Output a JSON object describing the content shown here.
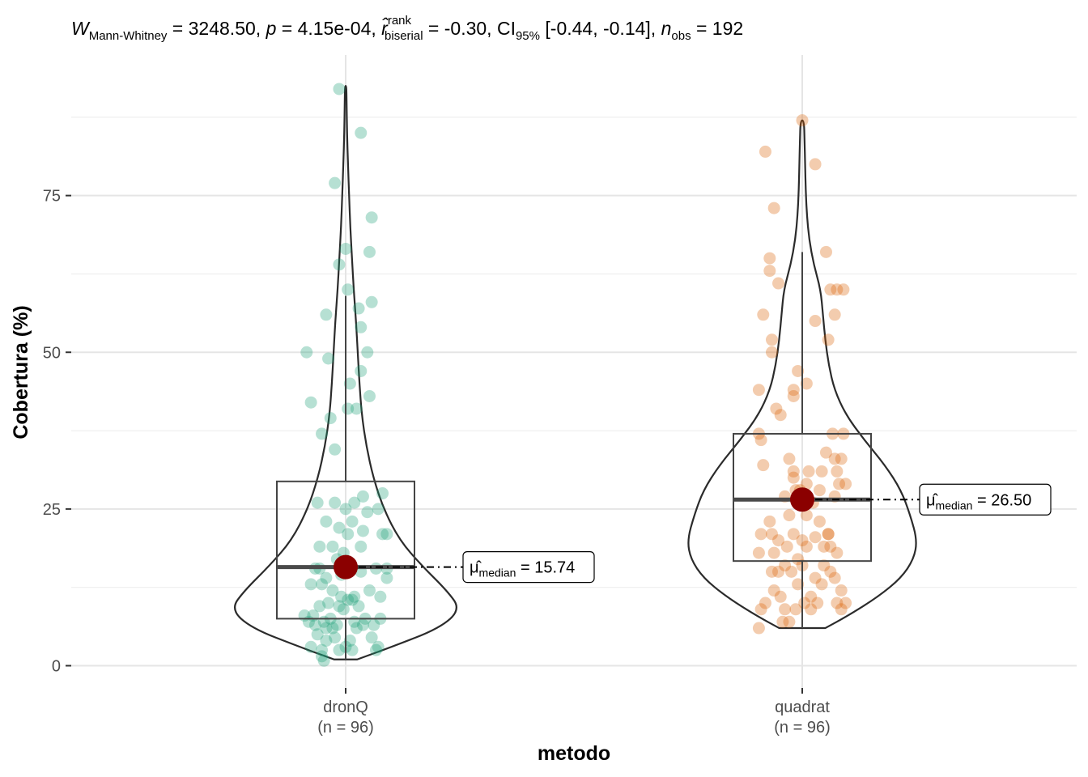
{
  "title": {
    "w_symbol": "W",
    "w_sub": "Mann-Whitney",
    "w_value": " = 3248.50, ",
    "p_symbol": "p",
    "p_value": " = 4.15e-04, ",
    "r_symbol": "r̂",
    "r_sup": "rank",
    "r_sub": "biserial",
    "r_value": " = -0.30, CI",
    "ci_sub": "95%",
    "ci_value": " [-0.44, -0.14], ",
    "n_symbol": "n",
    "n_sub": "obs",
    "n_value": " = 192"
  },
  "chart_data": {
    "type": "violin-box-scatter",
    "xlabel": "metodo",
    "ylabel": "Cobertura (%)",
    "ylim": [
      -3,
      98
    ],
    "yticks": [
      "0",
      "25",
      "50",
      "75"
    ],
    "ytick_values": [
      0,
      25,
      50,
      75
    ],
    "groups": [
      {
        "name": "dronQ",
        "label": "dronQ",
        "n_label": "(n = 96)",
        "color": "#1b9e77",
        "box": {
          "q1": 7.5,
          "median": 15.74,
          "q3": 29.4,
          "whisker_low": 1.0,
          "whisker_high": 59.0
        },
        "median_label_sym": "μ̂",
        "median_label_sub": "median",
        "median_label_val": " = 15.74",
        "median": 15.74,
        "violin_min": 1.0,
        "violin_max": 92.5,
        "violin": [
          [
            1,
            0.1
          ],
          [
            3,
            0.4
          ],
          [
            6,
            0.82
          ],
          [
            9,
            1.0
          ],
          [
            12,
            0.88
          ],
          [
            16,
            0.66
          ],
          [
            20,
            0.47
          ],
          [
            25,
            0.33
          ],
          [
            30,
            0.24
          ],
          [
            35,
            0.18
          ],
          [
            40,
            0.14
          ],
          [
            45,
            0.12
          ],
          [
            50,
            0.105
          ],
          [
            55,
            0.09
          ],
          [
            60,
            0.07
          ],
          [
            65,
            0.055
          ],
          [
            70,
            0.04
          ],
          [
            75,
            0.03
          ],
          [
            80,
            0.02
          ],
          [
            85,
            0.012
          ],
          [
            90,
            0.008
          ],
          [
            92.5,
            0.006
          ]
        ],
        "points": [
          {
            "x": -0.03,
            "y": 92
          },
          {
            "x": 0.07,
            "y": 85
          },
          {
            "x": -0.05,
            "y": 77
          },
          {
            "x": 0.12,
            "y": 71.5
          },
          {
            "x": 0.0,
            "y": 66.5
          },
          {
            "x": 0.11,
            "y": 66
          },
          {
            "x": -0.03,
            "y": 64
          },
          {
            "x": 0.01,
            "y": 60
          },
          {
            "x": 0.12,
            "y": 58
          },
          {
            "x": 0.06,
            "y": 57
          },
          {
            "x": -0.09,
            "y": 56
          },
          {
            "x": 0.07,
            "y": 54
          },
          {
            "x": -0.18,
            "y": 50
          },
          {
            "x": 0.1,
            "y": 50
          },
          {
            "x": -0.08,
            "y": 49
          },
          {
            "x": 0.07,
            "y": 47
          },
          {
            "x": 0.02,
            "y": 45
          },
          {
            "x": 0.11,
            "y": 43
          },
          {
            "x": -0.16,
            "y": 42
          },
          {
            "x": 0.05,
            "y": 41
          },
          {
            "x": 0.01,
            "y": 41
          },
          {
            "x": -0.07,
            "y": 39.5
          },
          {
            "x": -0.11,
            "y": 37
          },
          {
            "x": -0.05,
            "y": 34.5
          },
          {
            "x": 0.08,
            "y": 27
          },
          {
            "x": 0.17,
            "y": 27.5
          },
          {
            "x": 0.04,
            "y": 26
          },
          {
            "x": -0.13,
            "y": 26
          },
          {
            "x": -0.05,
            "y": 26
          },
          {
            "x": 0.0,
            "y": 25
          },
          {
            "x": 0.15,
            "y": 25
          },
          {
            "x": 0.1,
            "y": 24.5
          },
          {
            "x": 0.03,
            "y": 23
          },
          {
            "x": -0.09,
            "y": 23
          },
          {
            "x": -0.03,
            "y": 22
          },
          {
            "x": 0.08,
            "y": 21.5
          },
          {
            "x": 0.19,
            "y": 21
          },
          {
            "x": 0.01,
            "y": 21
          },
          {
            "x": 0.17,
            "y": 21
          },
          {
            "x": -0.12,
            "y": 19
          },
          {
            "x": -0.06,
            "y": 19
          },
          {
            "x": 0.07,
            "y": 19
          },
          {
            "x": -0.01,
            "y": 18
          },
          {
            "x": -0.04,
            "y": 17
          },
          {
            "x": -0.14,
            "y": 15.5
          },
          {
            "x": -0.12,
            "y": 15.5
          },
          {
            "x": 0.14,
            "y": 15.5
          },
          {
            "x": 0.19,
            "y": 15.5
          },
          {
            "x": 0.02,
            "y": 15.5
          },
          {
            "x": 0.07,
            "y": 15
          },
          {
            "x": -0.02,
            "y": 14.5
          },
          {
            "x": -0.09,
            "y": 14
          },
          {
            "x": 0.19,
            "y": 14
          },
          {
            "x": -0.16,
            "y": 13
          },
          {
            "x": -0.11,
            "y": 13
          },
          {
            "x": -0.06,
            "y": 12
          },
          {
            "x": 0.04,
            "y": 11
          },
          {
            "x": -0.02,
            "y": 11
          },
          {
            "x": 0.01,
            "y": 10.5
          },
          {
            "x": 0.03,
            "y": 10.5
          },
          {
            "x": -0.08,
            "y": 10
          },
          {
            "x": 0.16,
            "y": 11
          },
          {
            "x": -0.03,
            "y": 9.5
          },
          {
            "x": -0.12,
            "y": 9.5
          },
          {
            "x": -0.19,
            "y": 8
          },
          {
            "x": -0.17,
            "y": 7
          },
          {
            "x": 0.16,
            "y": 7.5
          },
          {
            "x": 0.09,
            "y": 7.5
          },
          {
            "x": 0.04,
            "y": 7
          },
          {
            "x": -0.1,
            "y": 7
          },
          {
            "x": -0.04,
            "y": 6.5
          },
          {
            "x": 0.13,
            "y": 6.5
          },
          {
            "x": -0.14,
            "y": 6.5
          },
          {
            "x": -0.09,
            "y": 6
          },
          {
            "x": -0.06,
            "y": 6
          },
          {
            "x": 0.05,
            "y": 6
          },
          {
            "x": -0.13,
            "y": 5
          },
          {
            "x": -0.09,
            "y": 4
          },
          {
            "x": 0.12,
            "y": 4.5
          },
          {
            "x": 0.15,
            "y": 3
          },
          {
            "x": -0.16,
            "y": 3
          },
          {
            "x": -0.11,
            "y": 2.5
          },
          {
            "x": -0.03,
            "y": 2.5
          },
          {
            "x": 0.03,
            "y": 2.5
          },
          {
            "x": 0.14,
            "y": 2.5
          },
          {
            "x": -0.11,
            "y": 1.5
          },
          {
            "x": -0.1,
            "y": 0.8
          },
          {
            "x": 0.0,
            "y": 3
          },
          {
            "x": 0.08,
            "y": 6.5
          },
          {
            "x": -0.07,
            "y": 7.5
          },
          {
            "x": 0.11,
            "y": 12
          },
          {
            "x": -0.01,
            "y": 9
          },
          {
            "x": 0.02,
            "y": 4
          },
          {
            "x": -0.15,
            "y": 8
          },
          {
            "x": 0.06,
            "y": 9.5
          },
          {
            "x": -0.05,
            "y": 4.5
          }
        ]
      },
      {
        "name": "quadrat",
        "label": "quadrat",
        "n_label": "(n = 96)",
        "color": "#d95f02",
        "box": {
          "q1": 16.7,
          "median": 26.5,
          "q3": 37.0,
          "whisker_low": 6.0,
          "whisker_high": 66.0
        },
        "median_label_sym": "μ̂",
        "median_label_sub": "median",
        "median_label_val": " = 26.50",
        "median": 26.5,
        "violin_min": 6.0,
        "violin_max": 87.0,
        "violin": [
          [
            6,
            0.2
          ],
          [
            8,
            0.4
          ],
          [
            11,
            0.66
          ],
          [
            14,
            0.86
          ],
          [
            17,
            0.97
          ],
          [
            20,
            1.0
          ],
          [
            24,
            0.94
          ],
          [
            28,
            0.86
          ],
          [
            32,
            0.72
          ],
          [
            36,
            0.54
          ],
          [
            40,
            0.38
          ],
          [
            44,
            0.28
          ],
          [
            48,
            0.23
          ],
          [
            52,
            0.2
          ],
          [
            56,
            0.18
          ],
          [
            60,
            0.16
          ],
          [
            64,
            0.1
          ],
          [
            68,
            0.06
          ],
          [
            72,
            0.04
          ],
          [
            76,
            0.03
          ],
          [
            80,
            0.025
          ],
          [
            84,
            0.02
          ],
          [
            87,
            0.015
          ]
        ],
        "points": [
          {
            "x": 0.0,
            "y": 87
          },
          {
            "x": -0.17,
            "y": 82
          },
          {
            "x": 0.06,
            "y": 80
          },
          {
            "x": -0.13,
            "y": 73
          },
          {
            "x": -0.15,
            "y": 65
          },
          {
            "x": 0.11,
            "y": 66
          },
          {
            "x": -0.15,
            "y": 63
          },
          {
            "x": -0.11,
            "y": 61
          },
          {
            "x": 0.13,
            "y": 60
          },
          {
            "x": 0.19,
            "y": 60
          },
          {
            "x": 0.16,
            "y": 60
          },
          {
            "x": -0.18,
            "y": 56
          },
          {
            "x": 0.15,
            "y": 56
          },
          {
            "x": 0.06,
            "y": 55
          },
          {
            "x": -0.14,
            "y": 52
          },
          {
            "x": 0.12,
            "y": 52
          },
          {
            "x": -0.14,
            "y": 50
          },
          {
            "x": -0.02,
            "y": 47
          },
          {
            "x": 0.02,
            "y": 45
          },
          {
            "x": -0.2,
            "y": 44
          },
          {
            "x": -0.04,
            "y": 44
          },
          {
            "x": -0.04,
            "y": 43
          },
          {
            "x": -0.12,
            "y": 41
          },
          {
            "x": -0.1,
            "y": 40
          },
          {
            "x": -0.2,
            "y": 37
          },
          {
            "x": 0.14,
            "y": 37
          },
          {
            "x": 0.19,
            "y": 37
          },
          {
            "x": -0.19,
            "y": 36
          },
          {
            "x": -0.06,
            "y": 33
          },
          {
            "x": 0.15,
            "y": 33
          },
          {
            "x": 0.18,
            "y": 33
          },
          {
            "x": -0.18,
            "y": 32
          },
          {
            "x": -0.04,
            "y": 31
          },
          {
            "x": 0.03,
            "y": 31
          },
          {
            "x": 0.09,
            "y": 31
          },
          {
            "x": 0.16,
            "y": 31
          },
          {
            "x": 0.02,
            "y": 29
          },
          {
            "x": -0.03,
            "y": 28
          },
          {
            "x": -0.01,
            "y": 28
          },
          {
            "x": -0.04,
            "y": 30
          },
          {
            "x": 0.17,
            "y": 29
          },
          {
            "x": 0.2,
            "y": 29
          },
          {
            "x": 0.08,
            "y": 28
          },
          {
            "x": -0.08,
            "y": 27
          },
          {
            "x": 0.15,
            "y": 27
          },
          {
            "x": -0.02,
            "y": 26.5
          },
          {
            "x": 0.05,
            "y": 26
          },
          {
            "x": -0.06,
            "y": 24
          },
          {
            "x": 0.02,
            "y": 24
          },
          {
            "x": -0.19,
            "y": 21
          },
          {
            "x": -0.14,
            "y": 21
          },
          {
            "x": -0.04,
            "y": 21
          },
          {
            "x": 0.0,
            "y": 20
          },
          {
            "x": -0.11,
            "y": 20
          },
          {
            "x": 0.12,
            "y": 21
          },
          {
            "x": 0.06,
            "y": 20.5
          },
          {
            "x": -0.07,
            "y": 19
          },
          {
            "x": 0.1,
            "y": 19
          },
          {
            "x": 0.02,
            "y": 19
          },
          {
            "x": 0.13,
            "y": 19
          },
          {
            "x": -0.2,
            "y": 18
          },
          {
            "x": -0.13,
            "y": 18
          },
          {
            "x": 0.16,
            "y": 18
          },
          {
            "x": -0.02,
            "y": 17
          },
          {
            "x": 0.1,
            "y": 16
          },
          {
            "x": -0.08,
            "y": 16
          },
          {
            "x": 0.0,
            "y": 16
          },
          {
            "x": -0.14,
            "y": 15
          },
          {
            "x": -0.11,
            "y": 15
          },
          {
            "x": 0.13,
            "y": 15
          },
          {
            "x": 0.15,
            "y": 14
          },
          {
            "x": 0.06,
            "y": 14
          },
          {
            "x": -0.02,
            "y": 13
          },
          {
            "x": 0.09,
            "y": 13
          },
          {
            "x": -0.13,
            "y": 12
          },
          {
            "x": 0.18,
            "y": 12
          },
          {
            "x": -0.1,
            "y": 11
          },
          {
            "x": 0.04,
            "y": 11
          },
          {
            "x": 0.07,
            "y": 10
          },
          {
            "x": 0.16,
            "y": 10
          },
          {
            "x": -0.17,
            "y": 10
          },
          {
            "x": 0.2,
            "y": 10
          },
          {
            "x": 0.01,
            "y": 10
          },
          {
            "x": -0.08,
            "y": 9
          },
          {
            "x": -0.03,
            "y": 9
          },
          {
            "x": 0.04,
            "y": 9
          },
          {
            "x": 0.18,
            "y": 9
          },
          {
            "x": -0.19,
            "y": 9
          },
          {
            "x": -0.06,
            "y": 7
          },
          {
            "x": -0.09,
            "y": 7
          },
          {
            "x": -0.2,
            "y": 6
          },
          {
            "x": 0.12,
            "y": 21
          },
          {
            "x": -0.05,
            "y": 15
          },
          {
            "x": 0.08,
            "y": 23
          },
          {
            "x": -0.15,
            "y": 23
          },
          {
            "x": 0.11,
            "y": 34
          }
        ]
      }
    ]
  }
}
